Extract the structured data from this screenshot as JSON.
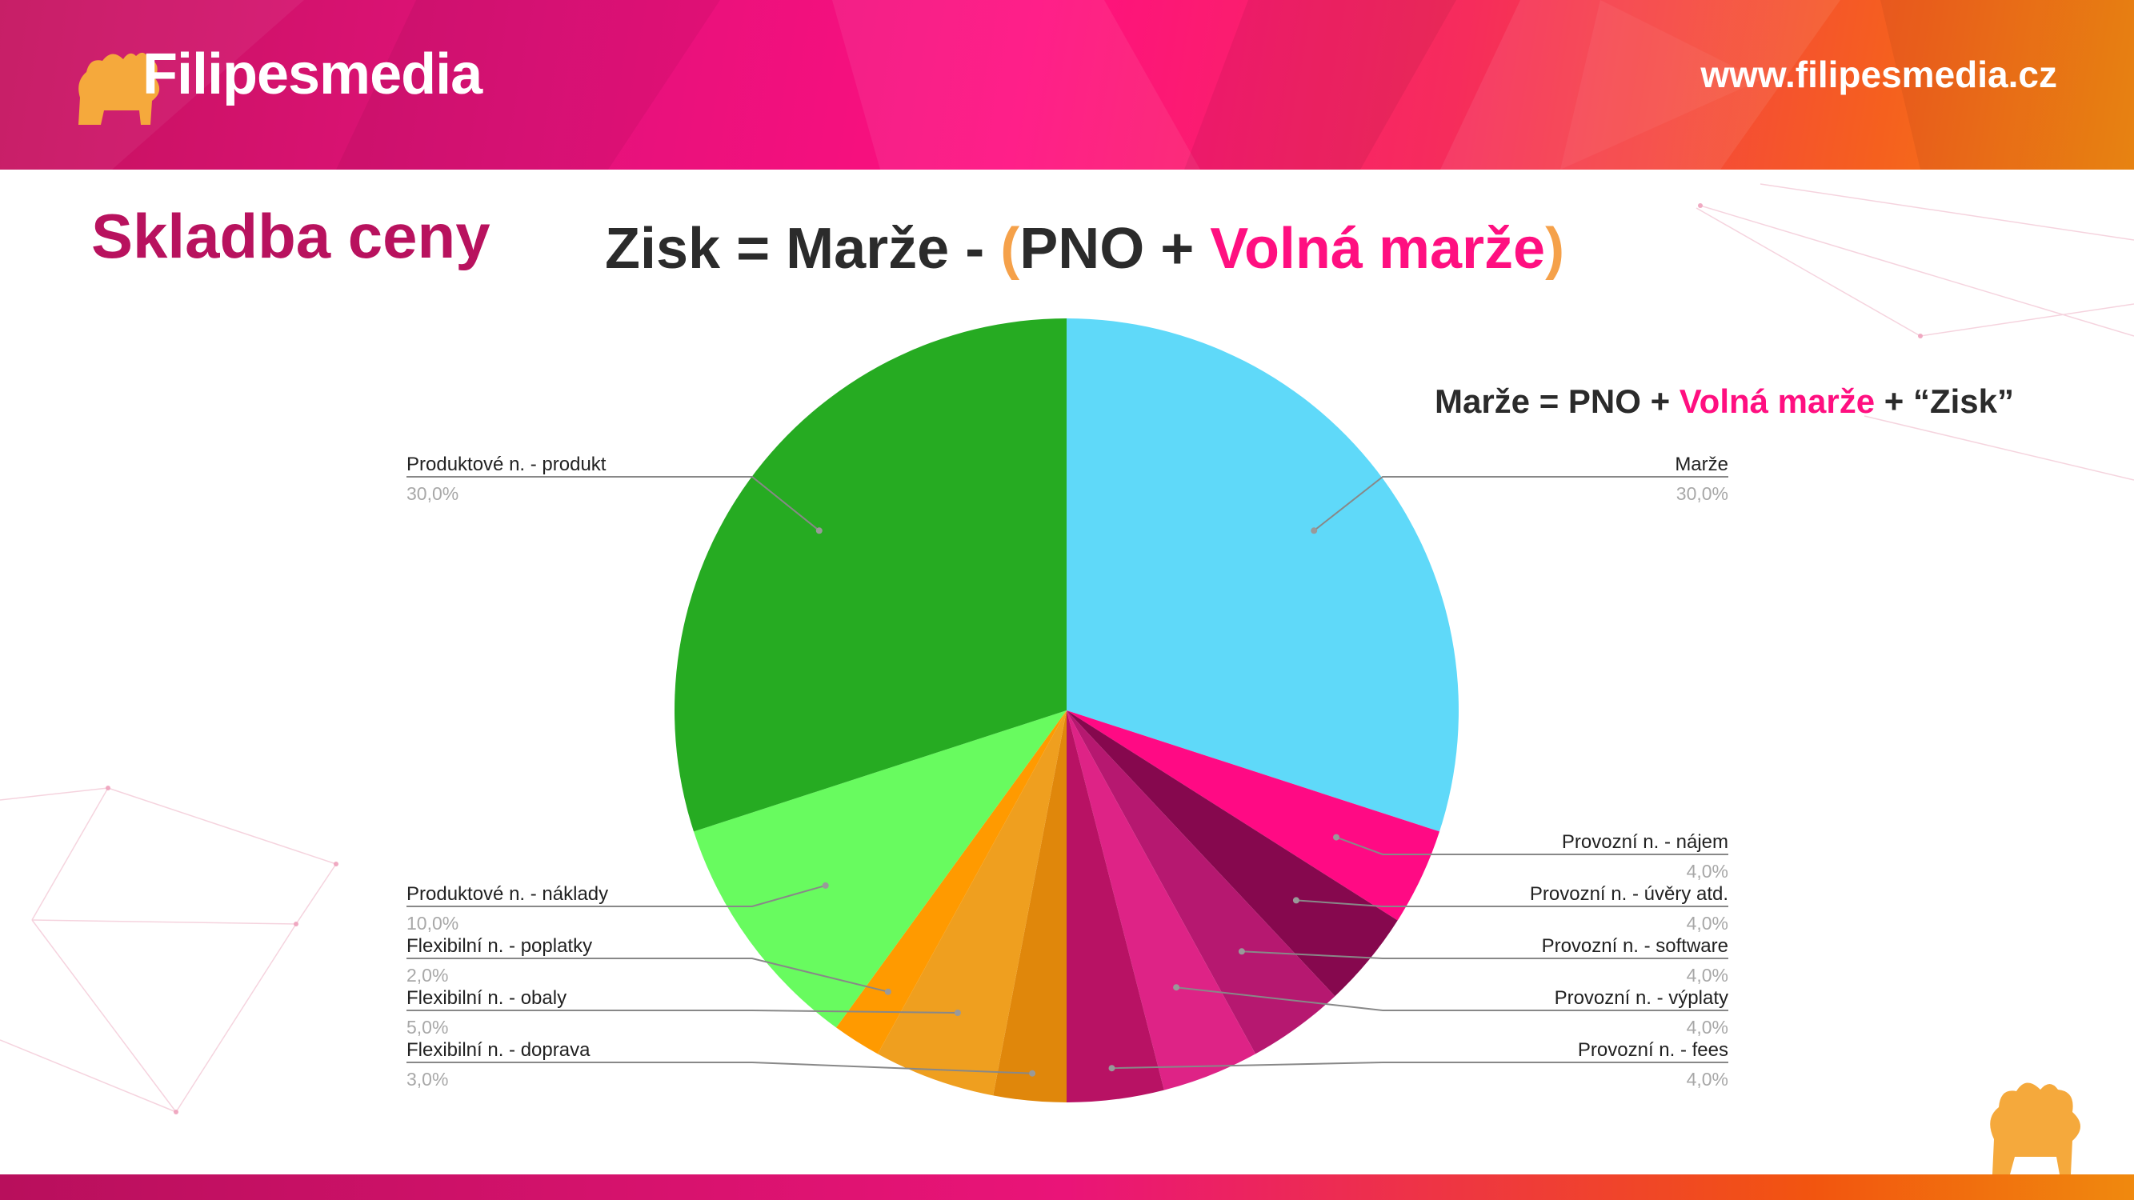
{
  "header": {
    "brand": "Filipesmedia",
    "url": "www.filipesmedia.cz"
  },
  "page_title": "Skladba ceny",
  "formula_main": {
    "part1": "Zisk = Marže - ",
    "open_paren": "(",
    "part2": "PNO + ",
    "accent": "Volná marže",
    "close_paren": ")"
  },
  "formula_sub": {
    "part1": "Marže = PNO + ",
    "accent": "Volná marže",
    "part2": " + “Zisk”"
  },
  "colors": {
    "brand_pink": "#ff0f80",
    "title_magenta": "#b8125e",
    "paren_orange": "#f5a14a",
    "text_dark": "#2b2b2b"
  },
  "icons": [
    "dog-mascot-icon"
  ],
  "chart_data": {
    "type": "pie",
    "slices": [
      {
        "name": "Marže",
        "value": 30.0,
        "label": "30,0%",
        "color": "#5fd9f9"
      },
      {
        "name": "Provozní n. - nájem",
        "value": 4.0,
        "label": "4,0%",
        "color": "#ff0a84"
      },
      {
        "name": "Provozní n. - úvěry atd.",
        "value": 4.0,
        "label": "4,0%",
        "color": "#86084e"
      },
      {
        "name": "Provozní n. - software",
        "value": 4.0,
        "label": "4,0%",
        "color": "#b61870"
      },
      {
        "name": "Provozní n. - výplaty",
        "value": 4.0,
        "label": "4,0%",
        "color": "#de2386"
      },
      {
        "name": "Provozní n. - fees",
        "value": 4.0,
        "label": "4,0%",
        "color": "#b81264"
      },
      {
        "name": "Flexibilní n. - doprava",
        "value": 3.0,
        "label": "3,0%",
        "color": "#e0870b"
      },
      {
        "name": "Flexibilní n. - obaly",
        "value": 5.0,
        "label": "5,0%",
        "color": "#ef9f1f"
      },
      {
        "name": "Flexibilní n. - poplatky",
        "value": 2.0,
        "label": "2,0%",
        "color": "#ff9a00"
      },
      {
        "name": "Produktové n. - náklady",
        "value": 10.0,
        "label": "10,0%",
        "color": "#68fb5f"
      },
      {
        "name": "Produktové n. - produkt",
        "value": 30.0,
        "label": "30,0%",
        "color": "#26ab22"
      }
    ]
  }
}
